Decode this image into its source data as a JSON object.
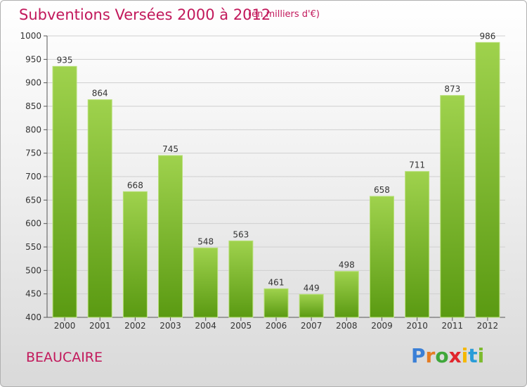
{
  "header": {
    "title": "Subventions Versées 2000 à 2012",
    "subtitle": "(en milliers d'€)"
  },
  "footer": {
    "city": "BEAUCAIRE",
    "logo_text": "Proxiti"
  },
  "colors": {
    "title": "#c2185b",
    "bar_top": "#9fd24d",
    "bar_bottom": "#5a9a12",
    "logo_letters": [
      "#3a7fd6",
      "#e57c22",
      "#3fa73a",
      "#e1262d",
      "#f5b800",
      "#2a9cd8",
      "#7dbb2e"
    ]
  },
  "chart_data": {
    "type": "bar",
    "title": "Subventions Versées 2000 à 2012",
    "subtitle": "(en milliers d'€)",
    "xlabel": "",
    "ylabel": "",
    "categories": [
      "2000",
      "2001",
      "2002",
      "2003",
      "2004",
      "2005",
      "2006",
      "2007",
      "2008",
      "2009",
      "2010",
      "2011",
      "2012"
    ],
    "values": [
      935,
      864,
      668,
      745,
      548,
      563,
      461,
      449,
      498,
      658,
      711,
      873,
      986
    ],
    "ylim": [
      400,
      1000
    ],
    "yticks": [
      400,
      450,
      500,
      550,
      600,
      650,
      700,
      750,
      800,
      850,
      900,
      950,
      1000
    ],
    "grid": true,
    "legend": "none"
  }
}
